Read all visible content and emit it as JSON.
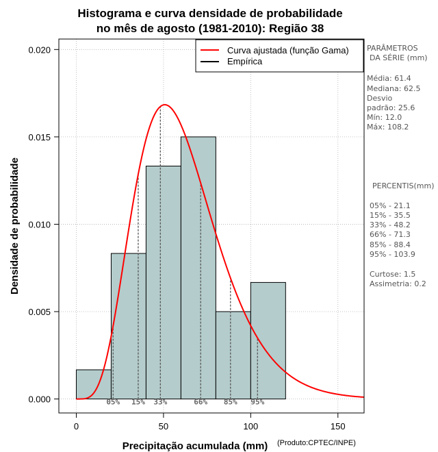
{
  "chart_data": {
    "type": "bar",
    "title": [
      "Histograma e curva densidade de probabilidade",
      "no mês de agosto (1981-2010): Região 38"
    ],
    "xlabel": "Precipitação acumulada (mm)",
    "ylabel": "Densidade de probabilidade",
    "credit": "(Produto:CPTEC/INPE)",
    "xlim": [
      -10,
      165
    ],
    "ylim": [
      -0.0008,
      0.0206
    ],
    "x_ticks": [
      0,
      50,
      100,
      150
    ],
    "y_ticks": [
      0.0,
      0.005,
      0.01,
      0.015,
      0.02
    ],
    "y_tick_labels": [
      "0.000",
      "0.005",
      "0.010",
      "0.015",
      "0.020"
    ],
    "grid": true,
    "bins": [
      {
        "x0": 0,
        "x1": 20,
        "density": 0.00167
      },
      {
        "x0": 20,
        "x1": 40,
        "density": 0.00833
      },
      {
        "x0": 40,
        "x1": 60,
        "density": 0.01333
      },
      {
        "x0": 60,
        "x1": 80,
        "density": 0.015
      },
      {
        "x0": 80,
        "x1": 100,
        "density": 0.005
      },
      {
        "x0": 100,
        "x1": 120,
        "density": 0.00667
      }
    ],
    "gamma_fit": {
      "shape": 5.75,
      "scale": 10.68,
      "name": "Curva ajustada (função Gama)"
    },
    "percentile_markers": [
      {
        "label": "05%",
        "value": 21.1
      },
      {
        "label": "15%",
        "value": 35.5
      },
      {
        "label": "33%",
        "value": 48.2
      },
      {
        "label": "66%",
        "value": 71.3
      },
      {
        "label": "85%",
        "value": 88.4
      },
      {
        "label": "95%",
        "value": 103.9
      }
    ],
    "legend": {
      "position": "top-right",
      "entries": [
        {
          "label": "Curva ajustada (função Gama)",
          "color": "#ff0000"
        },
        {
          "label": "Empírica",
          "color": "#000000"
        }
      ]
    },
    "colors": {
      "bar_fill": "#b4cccc",
      "bar_stroke": "#000000",
      "curve": "#ff0000",
      "marker": "#555555",
      "grid": "#b0b0b0"
    }
  },
  "side_panel": {
    "series_header": [
      "PARÂMETROS",
      "DA SÉRIE (mm)"
    ],
    "stats": [
      "Média:  61.4",
      "Mediana:  62.5",
      "Desvio",
      "padrão:  25.6",
      "Mín:  12.0",
      "Máx:  108.2"
    ],
    "percentile_header": "PERCENTIS(mm)",
    "percentiles": [
      "05% -   21.1",
      "15% -   35.5",
      "33% -   48.2",
      "66% -   71.3",
      "85% -   88.4",
      "95% -   103.9"
    ],
    "shape_stats": [
      "Curtose:  1.5",
      "Assimetria:  0.2"
    ]
  }
}
